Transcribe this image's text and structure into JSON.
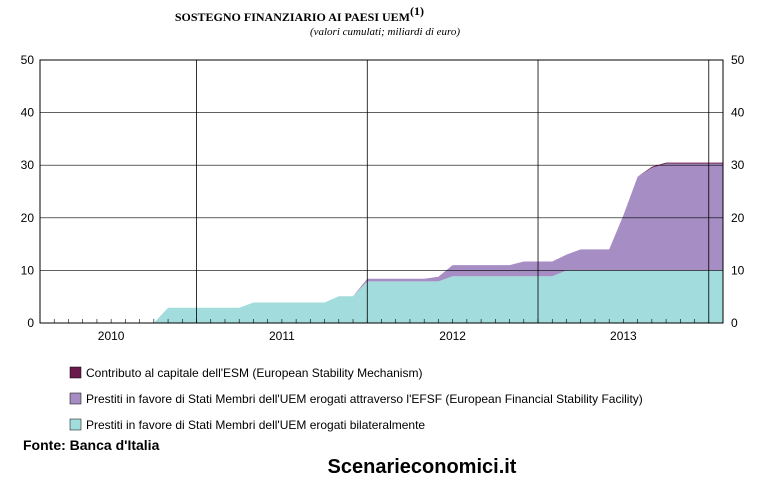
{
  "chart_data": {
    "type": "area",
    "title": "SOSTEGNO FINANZIARIO AI PAESI UEM",
    "title_sup": "(1)",
    "subtitle": "(valori cumulati; miliardi di euro)",
    "xlabel": "",
    "ylabel": "",
    "ylim": [
      0,
      50
    ],
    "yticks": [
      "0",
      "10",
      "20",
      "30",
      "40",
      "50"
    ],
    "year_labels": [
      "2010",
      "2011",
      "2012",
      "2013"
    ],
    "x": [
      "2009-08",
      "2009-09",
      "2009-10",
      "2009-11",
      "2009-12",
      "2010-01",
      "2010-02",
      "2010-03",
      "2010-04",
      "2010-05",
      "2010-06",
      "2010-07",
      "2010-08",
      "2010-09",
      "2010-10",
      "2010-11",
      "2010-12",
      "2011-01",
      "2011-02",
      "2011-03",
      "2011-04",
      "2011-05",
      "2011-06",
      "2011-07",
      "2011-08",
      "2011-09",
      "2011-10",
      "2011-11",
      "2011-12",
      "2012-01",
      "2012-02",
      "2012-03",
      "2012-04",
      "2012-05",
      "2012-06",
      "2012-07",
      "2012-08",
      "2012-09",
      "2012-10",
      "2012-11",
      "2012-12",
      "2013-01",
      "2013-02",
      "2013-03",
      "2013-04",
      "2013-05",
      "2013-06",
      "2013-07",
      "2013-08"
    ],
    "series": [
      {
        "name": "Prestiti in favore di Stati Membri dell'UEM erogati bilateralmente",
        "color": "#a3dcdc",
        "values": [
          0,
          0,
          0,
          0,
          0,
          0,
          0,
          0,
          0,
          2.9,
          2.9,
          2.9,
          2.9,
          2.9,
          2.9,
          3.9,
          3.9,
          3.9,
          3.9,
          3.9,
          3.9,
          5.1,
          5.1,
          7.9,
          7.9,
          7.9,
          7.9,
          7.9,
          7.9,
          8.9,
          8.9,
          8.9,
          8.9,
          8.9,
          8.9,
          8.9,
          8.9,
          10,
          10,
          10,
          10,
          10,
          10,
          10,
          10,
          10,
          10,
          10,
          10
        ]
      },
      {
        "name": "Prestiti in favore di Stati Membri dell'UEM erogati attraverso l'EFSF (European Financial Stability Facility)",
        "color": "#a68dc4",
        "values": [
          0,
          0,
          0,
          0,
          0,
          0,
          0,
          0,
          0,
          0,
          0,
          0,
          0,
          0,
          0,
          0,
          0,
          0,
          0,
          0,
          0,
          0,
          0,
          0.5,
          0.5,
          0.5,
          0.5,
          0.5,
          0.9,
          2.1,
          2.1,
          2.1,
          2.1,
          2.1,
          2.8,
          2.8,
          2.8,
          3.0,
          4.0,
          4.0,
          4.0,
          10.5,
          17.8,
          19.5,
          20.3,
          20.3,
          20.3,
          20.3,
          20.3
        ]
      },
      {
        "name": "Contributo al capitale dell'ESM (European Stability Mechanism)",
        "color": "#6b1a4e",
        "values": [
          0,
          0,
          0,
          0,
          0,
          0,
          0,
          0,
          0,
          0,
          0,
          0,
          0,
          0,
          0,
          0,
          0,
          0,
          0,
          0,
          0,
          0,
          0,
          0,
          0,
          0,
          0,
          0,
          0,
          0,
          0,
          0,
          0,
          0,
          0,
          0,
          0,
          0,
          0,
          0,
          0,
          0,
          0,
          0.2,
          0.2,
          0.2,
          0.2,
          0.2,
          0.2
        ]
      }
    ],
    "grid": true,
    "legend_position": "bottom-left"
  },
  "footer": {
    "source": "Fonte: Banca d'Italia",
    "watermark": "Scenarieconomici.it"
  }
}
